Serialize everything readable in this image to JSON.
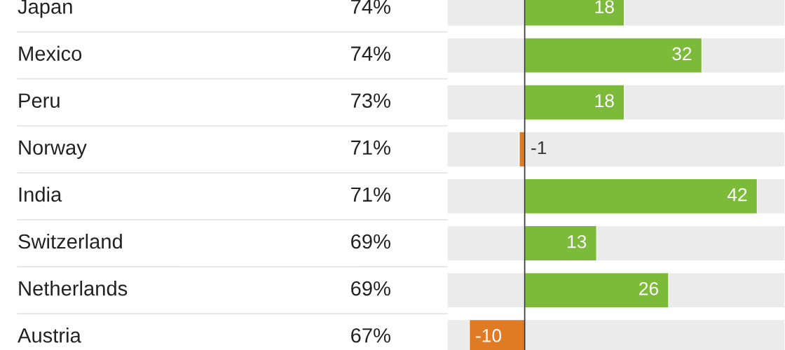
{
  "chart_data": {
    "type": "bar",
    "orientation": "horizontal",
    "categories": [
      "Japan",
      "Mexico",
      "Peru",
      "Norway",
      "India",
      "Switzerland",
      "Netherlands",
      "Austria"
    ],
    "values": [
      18,
      32,
      18,
      -1,
      42,
      13,
      26,
      -10
    ],
    "colors": [
      "#7cbb3a",
      "#7cbb3a",
      "#7cbb3a",
      "#e07b24",
      "#7cbb3a",
      "#7cbb3a",
      "#7cbb3a",
      "#e07b24"
    ],
    "data_labels": true,
    "annotations": [
      "74%",
      "74%",
      "73%",
      "71%",
      "71%",
      "69%",
      "69%",
      "67%"
    ],
    "xlim": [
      -14,
      47
    ]
  }
}
